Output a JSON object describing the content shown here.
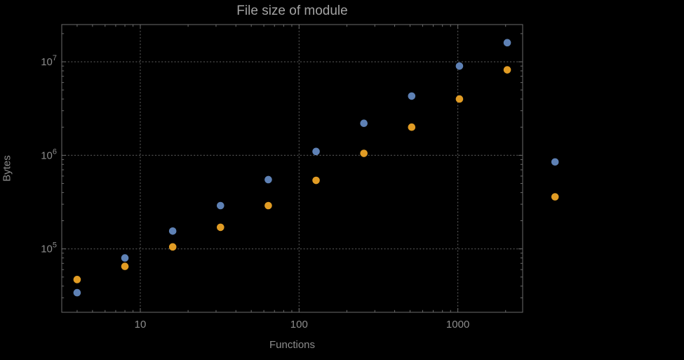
{
  "figure": {
    "background": "#000000",
    "frame_color": "#6b6b6b",
    "grid_color": "#585858",
    "tick_label_color": "#8c8c8c",
    "title_color": "#a3a3a3",
    "axis_label_color": "#8c8c8c"
  },
  "chart_data": {
    "type": "scatter",
    "title": "File size of module",
    "xlabel": "Functions",
    "ylabel": "Bytes",
    "x_scale": "log",
    "y_scale": "log",
    "xlim": [
      3.2,
      2560
    ],
    "ylim": [
      21000,
      25000000
    ],
    "x_major_ticks": [
      10,
      100,
      1000
    ],
    "x_tick_labels": [
      "10",
      "100",
      "1000"
    ],
    "y_major_ticks": [
      100000,
      1000000,
      10000000
    ],
    "y_tick_labels": [
      "10^5",
      "10^6",
      "10^7"
    ],
    "grid": "dotted-lines-at-major-ticks",
    "legend_position": "none",
    "marker_radius": 5.3,
    "series": [
      {
        "name": "blue",
        "color": "#5e81b5",
        "points": [
          [
            4,
            34000
          ],
          [
            8,
            80000
          ],
          [
            16,
            155000
          ],
          [
            32,
            290000
          ],
          [
            64,
            550000
          ],
          [
            128,
            1100000
          ],
          [
            256,
            2200000
          ],
          [
            512,
            4300000
          ],
          [
            1024,
            9000000
          ],
          [
            2048,
            16000000
          ],
          [
            4096,
            850000
          ]
        ]
      },
      {
        "name": "orange",
        "color": "#e19c24",
        "points": [
          [
            4,
            47000
          ],
          [
            8,
            65000
          ],
          [
            16,
            105000
          ],
          [
            32,
            170000
          ],
          [
            64,
            290000
          ],
          [
            128,
            540000
          ],
          [
            256,
            1050000
          ],
          [
            512,
            2000000
          ],
          [
            1024,
            4000000
          ],
          [
            2048,
            8200000
          ],
          [
            4096,
            360000
          ]
        ]
      }
    ]
  }
}
